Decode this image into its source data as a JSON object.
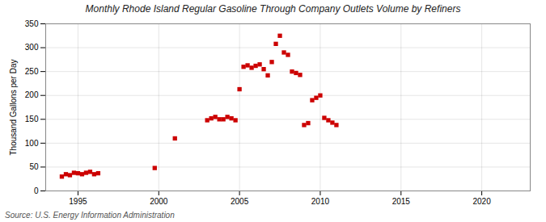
{
  "chart_data": {
    "type": "scatter",
    "title": "Monthly Rhode Island Regular Gasoline Through Company Outlets Volume by Refiners",
    "ylabel": "Thousand Gallons per Day",
    "annotations": [
      "Source: U.S. Energy Information Administration"
    ],
    "color": "#cc0000",
    "marker": "square",
    "grid": true,
    "xlim": [
      1993,
      2023
    ],
    "ylim": [
      0,
      350
    ],
    "xticks": [
      1995,
      2000,
      2005,
      2010,
      2015,
      2020
    ],
    "yticks": [
      0,
      50,
      100,
      150,
      200,
      250,
      300,
      350
    ],
    "x": [
      1994.0,
      1994.25,
      1994.5,
      1994.75,
      1995.0,
      1995.25,
      1995.5,
      1995.75,
      1996.0,
      1996.25,
      1999.75,
      2001.0,
      2003.0,
      2003.25,
      2003.5,
      2003.75,
      2004.0,
      2004.25,
      2004.5,
      2004.75,
      2005.0,
      2005.25,
      2005.5,
      2005.75,
      2006.0,
      2006.25,
      2006.5,
      2006.75,
      2007.0,
      2007.25,
      2007.5,
      2007.75,
      2008.0,
      2008.25,
      2008.5,
      2008.75,
      2009.0,
      2009.25,
      2009.5,
      2009.75,
      2010.0,
      2010.25,
      2010.5,
      2010.75,
      2011.0
    ],
    "values": [
      30,
      35,
      33,
      38,
      37,
      35,
      38,
      40,
      35,
      37,
      48,
      110,
      148,
      152,
      155,
      150,
      150,
      155,
      152,
      148,
      213,
      260,
      263,
      258,
      262,
      265,
      255,
      242,
      270,
      308,
      325,
      290,
      285,
      250,
      247,
      243,
      138,
      142,
      190,
      195,
      200,
      153,
      148,
      143,
      138
    ]
  }
}
